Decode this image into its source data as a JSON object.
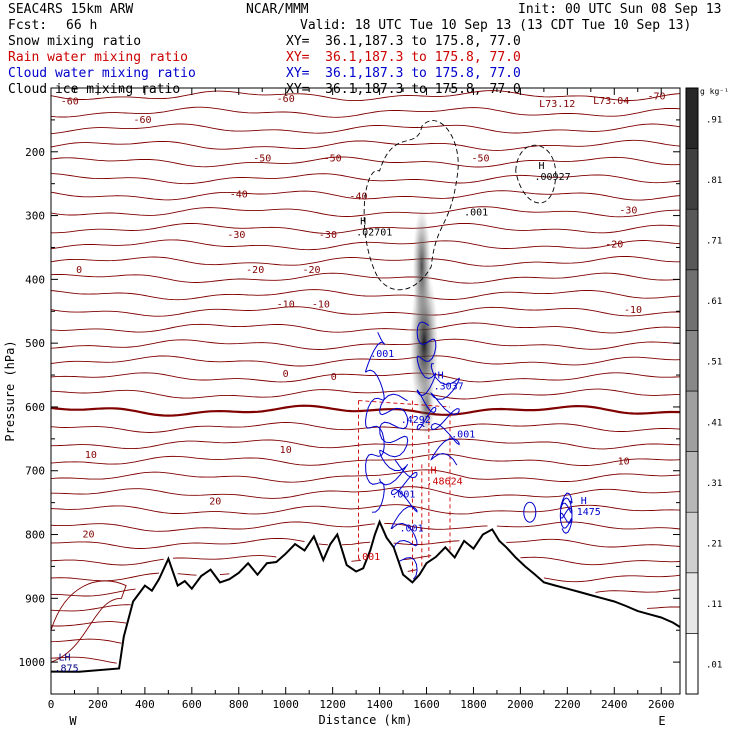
{
  "header": {
    "model": "SEAC4RS 15km ARW",
    "org": "NCAR/MMM",
    "init": "Init: 00 UTC Sun 08 Sep 13",
    "fcst_label": "Fcst:",
    "fcst_value": "66 h",
    "valid": "Valid: 18 UTC Tue 10 Sep 13 (13 CDT Tue 10 Sep 13)",
    "fields": [
      {
        "name": "Snow mixing ratio",
        "xy": "XY=  36.1,187.3 to 175.8, 77.0",
        "color": "#000000"
      },
      {
        "name": "Rain water mixing ratio",
        "xy": "XY=  36.1,187.3 to 175.8, 77.0",
        "color": "#cc0000"
      },
      {
        "name": "Cloud water mixing ratio",
        "xy": "XY=  36.1,187.3 to 175.8, 77.0",
        "color": "#0000cc"
      },
      {
        "name": "Cloud ice mixing ratio",
        "xy": "XY=  36.1,187.3 to 175.8, 77.0",
        "color": "#000000"
      }
    ]
  },
  "chart_data": {
    "type": "cross-section contour",
    "xlabel": "Distance (km)",
    "ylabel": "Pressure (hPa)",
    "x_ticks": [
      0,
      200,
      400,
      600,
      800,
      1000,
      1200,
      1400,
      1600,
      1800,
      2000,
      2200,
      2400,
      2600
    ],
    "y_ticks": [
      200,
      300,
      400,
      500,
      600,
      700,
      800,
      900,
      1000
    ],
    "xlim": [
      0,
      2680
    ],
    "ylim": [
      1050,
      100
    ],
    "x_end_labels": {
      "left": "W",
      "right": "E"
    },
    "colorbar": {
      "unit": "g kg⁻¹",
      "labels": [
        ".01",
        ".11",
        ".21",
        ".31",
        ".41",
        ".51",
        ".61",
        ".71",
        ".81",
        ".91"
      ]
    },
    "temperature_labels": [
      "-70",
      "-60",
      "-50",
      "-40",
      "-30",
      "-20",
      "-10",
      "0",
      "10",
      "20"
    ],
    "terrain": {
      "x": [
        0,
        120,
        290,
        310,
        350,
        400,
        430,
        460,
        500,
        540,
        570,
        600,
        640,
        680,
        720,
        760,
        800,
        840,
        880,
        920,
        960,
        1000,
        1040,
        1080,
        1120,
        1160,
        1190,
        1220,
        1260,
        1300,
        1330,
        1360,
        1380,
        1400,
        1430,
        1460,
        1500,
        1540,
        1570,
        1600,
        1640,
        1680,
        1720,
        1760,
        1800,
        1840,
        1880,
        1910,
        1940,
        1980,
        2020,
        2060,
        2100,
        2150,
        2200,
        2250,
        2300,
        2350,
        2400,
        2450,
        2500,
        2550,
        2600,
        2650,
        2680
      ],
      "p": [
        1015,
        1015,
        1010,
        960,
        905,
        880,
        888,
        870,
        838,
        880,
        873,
        885,
        865,
        855,
        875,
        870,
        860,
        845,
        863,
        845,
        843,
        830,
        815,
        825,
        803,
        840,
        815,
        800,
        848,
        858,
        853,
        825,
        800,
        780,
        805,
        820,
        863,
        875,
        863,
        845,
        835,
        820,
        836,
        810,
        822,
        800,
        792,
        810,
        820,
        836,
        850,
        862,
        875,
        880,
        885,
        890,
        895,
        900,
        905,
        912,
        920,
        925,
        930,
        938,
        945
      ]
    },
    "annotations": [
      {
        "text": "L73.12",
        "x": 2080,
        "p": 130,
        "color": "#800000"
      },
      {
        "text": "L73.04",
        "x": 2310,
        "p": 125,
        "color": "#800000"
      },
      {
        "text": "H .00927",
        "x": 2060,
        "p": 235,
        "color": "#000000"
      },
      {
        "text": "H .02701",
        "x": 1300,
        "p": 322,
        "color": "#000000"
      },
      {
        "text": ".001",
        "x": 1760,
        "p": 300,
        "color": "#000000"
      },
      {
        "text": ".001",
        "x": 1360,
        "p": 522,
        "color": "#0000cc"
      },
      {
        "text": "H .3037",
        "x": 1630,
        "p": 563,
        "color": "#0000cc"
      },
      {
        "text": ".4292",
        "x": 1490,
        "p": 625,
        "color": "#0000cc"
      },
      {
        "text": ".001",
        "x": 1705,
        "p": 648,
        "color": "#0000cc"
      },
      {
        "text": "H .48624",
        "x": 1600,
        "p": 712,
        "color": "#cc0000"
      },
      {
        "text": ".001",
        "x": 1450,
        "p": 742,
        "color": "#0000cc"
      },
      {
        "text": ".001",
        "x": 1485,
        "p": 795,
        "color": "#0000cc"
      },
      {
        "text": ".001",
        "x": 1300,
        "p": 840,
        "color": "#cc0000"
      },
      {
        "text": "H 1475",
        "x": 2240,
        "p": 760,
        "color": "#0000cc"
      },
      {
        "text": "LH .875",
        "x": 15,
        "p": 1005,
        "color": "#000080"
      }
    ]
  },
  "colors": {
    "temperature": "#800000",
    "terrain": "#000000",
    "snow": "#000000",
    "rain": "#cc0000",
    "cloud_water": "#0000cc"
  }
}
